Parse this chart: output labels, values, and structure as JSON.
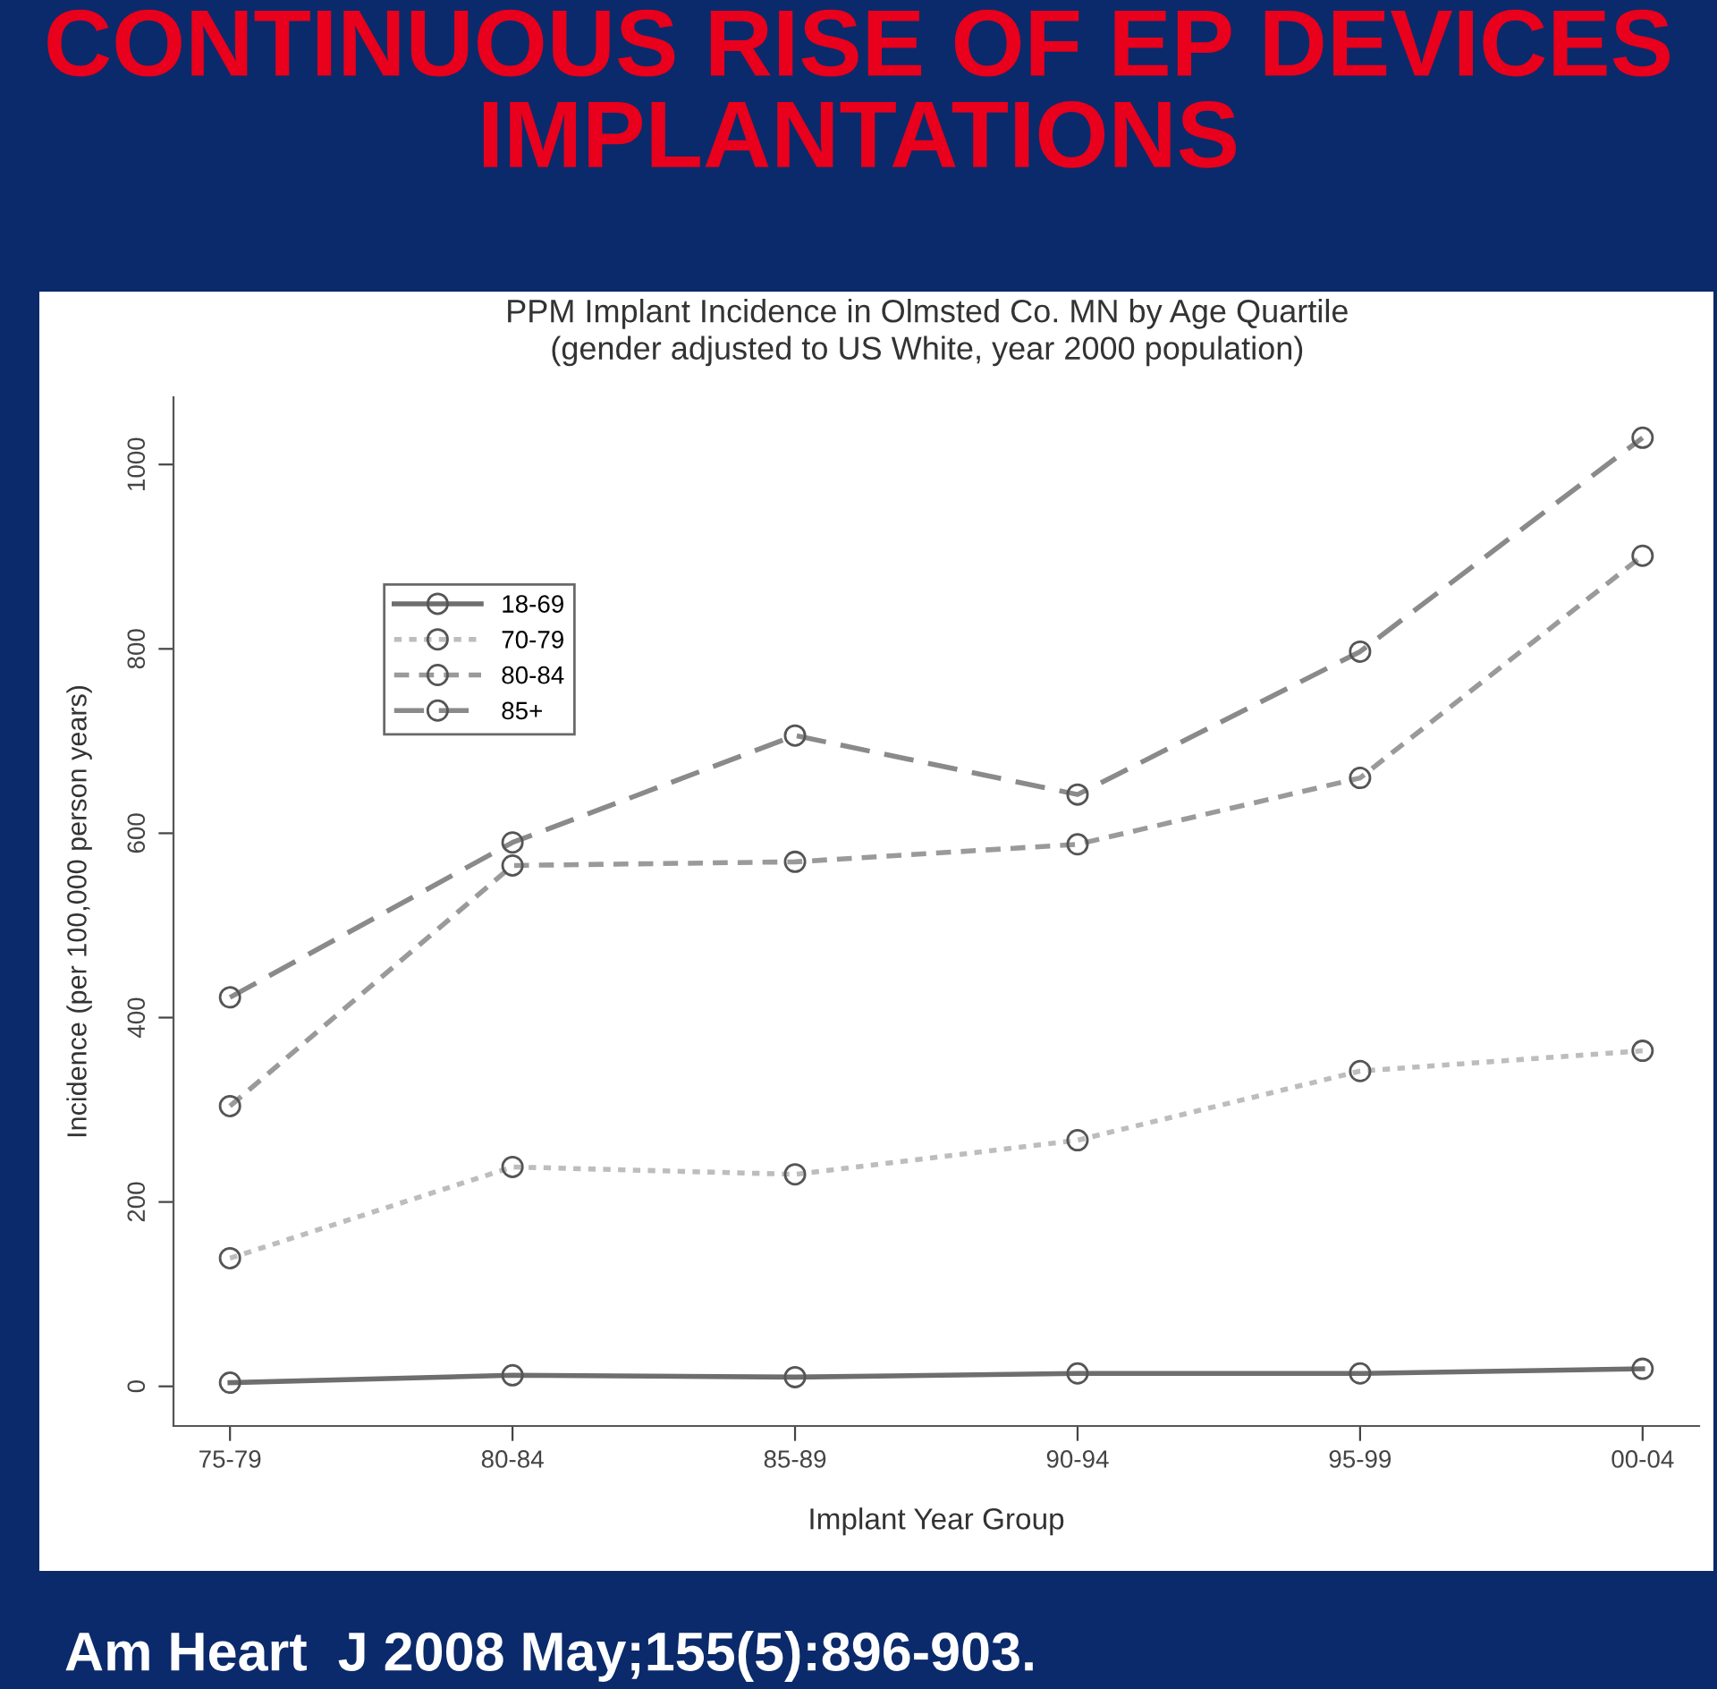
{
  "chart_data": {
    "type": "line",
    "title": "CONTINUOUS RISE OF EP DEVICES\nIMPLANTATIONS",
    "subtitle": "PPM Implant Incidence in Olmsted Co. MN by Age Quartile\n(gender adjusted to US White, year 2000 population)",
    "xlabel": "Implant Year Group",
    "ylabel": "Incidence (per 100,000 person years)",
    "annotations": [
      "Am Heart  J 2008 May;155(5):896-903."
    ],
    "categories": [
      "75-79",
      "80-84",
      "85-89",
      "90-94",
      "95-99",
      "00-04"
    ],
    "series": [
      {
        "name": "18-69",
        "color": "#6e6e6e",
        "line_style": "solid",
        "values": [
          4,
          12,
          10,
          14,
          14,
          19
        ]
      },
      {
        "name": "70-79",
        "color": "#bdbdbd",
        "line_style": "dotted",
        "values": [
          139,
          238,
          230,
          267,
          342,
          364
        ]
      },
      {
        "name": "80-84",
        "color": "#9a9a9a",
        "line_style": "dashed",
        "values": [
          304,
          565,
          569,
          588,
          660,
          901
        ]
      },
      {
        "name": "85+",
        "color": "#8a8a8a",
        "line_style": "dashed",
        "values": [
          422,
          590,
          706,
          642,
          797,
          1029
        ]
      }
    ],
    "ylim": [
      -43,
      1073
    ],
    "yticks": [
      0,
      200,
      400,
      600,
      800,
      1000
    ],
    "marker": "circle",
    "legend": "top left",
    "grid": false
  }
}
